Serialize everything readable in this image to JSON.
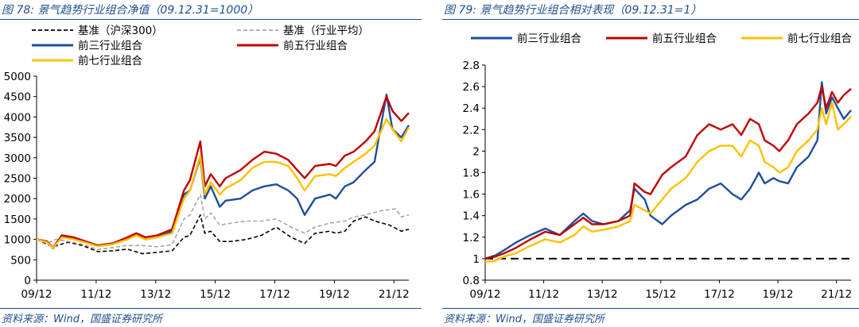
{
  "panels": [
    {
      "figure_title": "图 78: 景气趋势行业组合净值（09.12.31=1000）",
      "source": "资料来源：Wind，国盛证券研究所"
    },
    {
      "figure_title": "图 79: 景气趋势行业组合相对表现（09.12.31=1）",
      "source": "资料来源：Wind，国盛证券研究所"
    }
  ],
  "colors": {
    "blue": "#1F4E9C",
    "red": "#C00000",
    "yellow": "#FFC000",
    "black": "#000000",
    "gray": "#A6A6A6",
    "caption": "#1F4E8C"
  },
  "chart_data": [
    {
      "type": "line",
      "x_tick_labels": [
        "09/12",
        "11/12",
        "13/12",
        "15/12",
        "17/12",
        "19/12",
        "21/12"
      ],
      "x_ticks": [
        2009.95,
        2011.95,
        2013.95,
        2015.95,
        2017.95,
        2019.95,
        2021.95
      ],
      "xlim": [
        2009.95,
        2022.45
      ],
      "ylim": [
        0,
        5000
      ],
      "y_ticks": [
        0,
        500,
        1000,
        1500,
        2000,
        2500,
        3000,
        3500,
        4000,
        4500,
        5000
      ],
      "legend_placement": "top",
      "grid": false,
      "series": [
        {
          "name": "基准（沪深300）",
          "color_key": "black",
          "dash": "dashed",
          "x": [
            2009.95,
            2010.3,
            2010.5,
            2011.0,
            2011.5,
            2012.0,
            2012.5,
            2013.0,
            2013.5,
            2014.0,
            2014.5,
            2014.9,
            2015.1,
            2015.45,
            2015.6,
            2015.8,
            2016.1,
            2016.5,
            2017.0,
            2017.5,
            2018.0,
            2018.5,
            2018.95,
            2019.3,
            2019.8,
            2020.0,
            2020.3,
            2020.6,
            2021.0,
            2021.3,
            2021.8,
            2022.2,
            2022.45
          ],
          "values": [
            1000,
            880,
            820,
            930,
            850,
            700,
            720,
            760,
            650,
            680,
            720,
            1050,
            1100,
            1600,
            1150,
            1200,
            950,
            950,
            1000,
            1100,
            1300,
            1050,
            900,
            1150,
            1200,
            1150,
            1200,
            1450,
            1550,
            1450,
            1350,
            1200,
            1250
          ]
        },
        {
          "name": "基准（行业平均）",
          "color_key": "gray",
          "dash": "dashed",
          "x": [
            2009.95,
            2010.3,
            2010.6,
            2011.0,
            2011.5,
            2012.0,
            2012.5,
            2013.0,
            2013.5,
            2014.0,
            2014.5,
            2014.9,
            2015.1,
            2015.45,
            2015.6,
            2015.8,
            2016.1,
            2016.5,
            2017.0,
            2017.5,
            2018.0,
            2018.5,
            2018.95,
            2019.3,
            2019.8,
            2020.3,
            2020.6,
            2021.0,
            2021.5,
            2022.0,
            2022.2,
            2022.45
          ],
          "values": [
            1000,
            900,
            1000,
            950,
            880,
            750,
            800,
            850,
            850,
            820,
            870,
            1500,
            1600,
            2100,
            1500,
            1650,
            1350,
            1400,
            1450,
            1450,
            1500,
            1300,
            1150,
            1300,
            1400,
            1450,
            1550,
            1600,
            1700,
            1750,
            1550,
            1600
          ]
        },
        {
          "name": "前三行业组合",
          "color_key": "blue",
          "dash": "solid",
          "x": [
            2009.95,
            2010.3,
            2010.5,
            2010.8,
            2011.2,
            2011.6,
            2012.0,
            2012.5,
            2013.0,
            2013.3,
            2013.6,
            2014.0,
            2014.5,
            2014.9,
            2015.1,
            2015.45,
            2015.6,
            2015.8,
            2016.1,
            2016.3,
            2016.8,
            2017.2,
            2017.6,
            2018.0,
            2018.4,
            2018.7,
            2018.95,
            2019.3,
            2019.8,
            2020.0,
            2020.3,
            2020.6,
            2021.0,
            2021.3,
            2021.7,
            2021.9,
            2022.2,
            2022.45
          ],
          "values": [
            1000,
            950,
            780,
            1100,
            1000,
            950,
            850,
            900,
            1000,
            1150,
            1000,
            1050,
            1200,
            2100,
            2200,
            3000,
            2000,
            2300,
            1800,
            1950,
            2000,
            2200,
            2300,
            2350,
            2200,
            2000,
            1600,
            2000,
            2100,
            2000,
            2300,
            2400,
            2700,
            2900,
            4550,
            3700,
            3500,
            3800
          ]
        },
        {
          "name": "前五行业组合",
          "color_key": "red",
          "dash": "solid",
          "x": [
            2009.95,
            2010.3,
            2010.5,
            2010.8,
            2011.2,
            2011.6,
            2012.0,
            2012.5,
            2013.0,
            2013.3,
            2013.6,
            2014.0,
            2014.5,
            2014.9,
            2015.1,
            2015.45,
            2015.6,
            2015.8,
            2016.1,
            2016.3,
            2016.8,
            2017.2,
            2017.6,
            2018.0,
            2018.4,
            2018.7,
            2018.95,
            2019.3,
            2019.8,
            2020.0,
            2020.3,
            2020.6,
            2021.0,
            2021.3,
            2021.7,
            2021.9,
            2022.2,
            2022.45
          ],
          "values": [
            1000,
            950,
            800,
            1100,
            1050,
            950,
            850,
            900,
            1050,
            1150,
            1050,
            1100,
            1250,
            2200,
            2450,
            3400,
            2300,
            2600,
            2300,
            2500,
            2700,
            2950,
            3150,
            3100,
            2950,
            2700,
            2500,
            2800,
            2850,
            2800,
            3050,
            3150,
            3400,
            3650,
            4500,
            4150,
            3900,
            4100
          ]
        },
        {
          "name": "前七行业组合",
          "color_key": "yellow",
          "dash": "solid",
          "x": [
            2009.95,
            2010.3,
            2010.5,
            2010.8,
            2011.2,
            2011.6,
            2012.0,
            2012.5,
            2013.0,
            2013.3,
            2013.6,
            2014.0,
            2014.5,
            2014.9,
            2015.1,
            2015.45,
            2015.6,
            2015.8,
            2016.1,
            2016.3,
            2016.8,
            2017.2,
            2017.6,
            2018.0,
            2018.4,
            2018.7,
            2018.95,
            2019.3,
            2019.8,
            2020.0,
            2020.3,
            2020.6,
            2021.0,
            2021.3,
            2021.7,
            2021.9,
            2022.2,
            2022.45
          ],
          "values": [
            1000,
            930,
            790,
            1050,
            1000,
            920,
            830,
            880,
            1000,
            1100,
            1000,
            1050,
            1150,
            2000,
            2200,
            3050,
            2100,
            2400,
            2100,
            2250,
            2450,
            2750,
            2900,
            2900,
            2800,
            2500,
            2200,
            2550,
            2600,
            2550,
            2750,
            2900,
            3100,
            3300,
            3950,
            3700,
            3400,
            3750
          ]
        }
      ]
    },
    {
      "type": "line",
      "x_tick_labels": [
        "09/12",
        "11/12",
        "13/12",
        "15/12",
        "17/12",
        "19/12",
        "21/12"
      ],
      "x_ticks": [
        2009.95,
        2011.95,
        2013.95,
        2015.95,
        2017.95,
        2019.95,
        2021.95
      ],
      "xlim": [
        2009.95,
        2022.45
      ],
      "ylim": [
        0.8,
        2.8
      ],
      "y_ticks": [
        0.8,
        1.0,
        1.2,
        1.4,
        1.6,
        1.8,
        2.0,
        2.2,
        2.4,
        2.6,
        2.8
      ],
      "y_tick_labels": [
        "0.8",
        "1",
        "1.2",
        "1.4",
        "1.6",
        "1.8",
        "2",
        "2.2",
        "2.4",
        "2.6",
        "2.8"
      ],
      "baseline": 1.0,
      "legend_placement": "top",
      "grid": false,
      "series": [
        {
          "name": "前三行业组合",
          "color_key": "blue",
          "dash": "solid",
          "x": [
            2009.95,
            2010.3,
            2010.6,
            2011.0,
            2011.5,
            2012.0,
            2012.5,
            2013.0,
            2013.3,
            2013.6,
            2014.0,
            2014.5,
            2014.9,
            2015.05,
            2015.4,
            2015.6,
            2016.0,
            2016.3,
            2016.8,
            2017.2,
            2017.6,
            2018.0,
            2018.4,
            2018.7,
            2019.0,
            2019.3,
            2019.5,
            2019.8,
            2020.0,
            2020.3,
            2020.6,
            2021.0,
            2021.3,
            2021.45,
            2021.6,
            2021.8,
            2022.0,
            2022.2,
            2022.45
          ],
          "values": [
            1.0,
            1.03,
            1.08,
            1.15,
            1.22,
            1.28,
            1.22,
            1.35,
            1.42,
            1.35,
            1.32,
            1.35,
            1.45,
            1.65,
            1.55,
            1.4,
            1.32,
            1.4,
            1.5,
            1.55,
            1.65,
            1.7,
            1.6,
            1.55,
            1.65,
            1.8,
            1.7,
            1.75,
            1.72,
            1.7,
            1.85,
            1.95,
            2.1,
            2.64,
            2.35,
            2.5,
            2.4,
            2.3,
            2.38
          ]
        },
        {
          "name": "前五行业组合",
          "color_key": "red",
          "dash": "solid",
          "x": [
            2009.95,
            2010.3,
            2010.6,
            2011.0,
            2011.5,
            2012.0,
            2012.5,
            2013.0,
            2013.3,
            2013.6,
            2014.0,
            2014.5,
            2014.9,
            2015.05,
            2015.4,
            2015.6,
            2016.0,
            2016.3,
            2016.8,
            2017.2,
            2017.6,
            2018.0,
            2018.4,
            2018.7,
            2019.0,
            2019.3,
            2019.5,
            2019.8,
            2020.0,
            2020.3,
            2020.6,
            2021.0,
            2021.3,
            2021.45,
            2021.6,
            2021.8,
            2022.0,
            2022.2,
            2022.45
          ],
          "values": [
            1.0,
            1.02,
            1.05,
            1.1,
            1.18,
            1.25,
            1.22,
            1.32,
            1.38,
            1.32,
            1.32,
            1.35,
            1.4,
            1.7,
            1.62,
            1.6,
            1.78,
            1.85,
            1.95,
            2.15,
            2.25,
            2.2,
            2.25,
            2.15,
            2.3,
            2.25,
            2.1,
            2.05,
            2.0,
            2.1,
            2.25,
            2.35,
            2.45,
            2.6,
            2.4,
            2.55,
            2.45,
            2.52,
            2.58
          ]
        },
        {
          "name": "前七行业组合",
          "color_key": "yellow",
          "dash": "solid",
          "x": [
            2009.95,
            2010.3,
            2010.6,
            2011.0,
            2011.5,
            2012.0,
            2012.5,
            2013.0,
            2013.3,
            2013.6,
            2014.0,
            2014.5,
            2014.9,
            2015.05,
            2015.4,
            2015.6,
            2016.0,
            2016.3,
            2016.8,
            2017.2,
            2017.6,
            2018.0,
            2018.4,
            2018.7,
            2019.0,
            2019.3,
            2019.5,
            2019.8,
            2020.0,
            2020.3,
            2020.6,
            2021.0,
            2021.3,
            2021.45,
            2021.6,
            2021.8,
            2022.0,
            2022.2,
            2022.45
          ],
          "values": [
            0.97,
            0.98,
            1.02,
            1.05,
            1.12,
            1.18,
            1.15,
            1.22,
            1.3,
            1.25,
            1.27,
            1.3,
            1.35,
            1.5,
            1.45,
            1.42,
            1.55,
            1.65,
            1.75,
            1.9,
            2.0,
            2.05,
            2.05,
            1.95,
            2.1,
            2.05,
            1.9,
            1.85,
            1.8,
            1.85,
            2.0,
            2.1,
            2.2,
            2.4,
            2.25,
            2.45,
            2.2,
            2.25,
            2.32
          ]
        }
      ]
    }
  ]
}
